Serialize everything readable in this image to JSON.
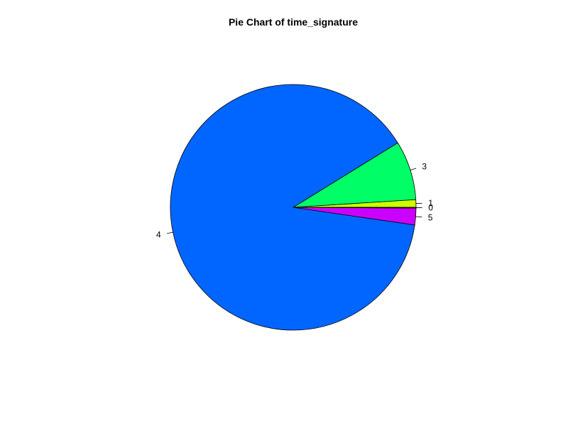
{
  "chart_data": {
    "type": "pie",
    "title": "Pie Chart of time_signature",
    "slices": [
      {
        "label": "1",
        "value": 1.0,
        "color": "#CCFF00"
      },
      {
        "label": "3",
        "value": 7.8,
        "color": "#00FF66"
      },
      {
        "label": "4",
        "value": 88.9,
        "color": "#0066FF"
      },
      {
        "label": "5",
        "value": 2.2,
        "color": "#CC00FF"
      },
      {
        "label": "0",
        "value": 0.1,
        "color": "#FF0000"
      }
    ],
    "unit": "%",
    "start_angle_deg": 0,
    "direction": "counterclockwise"
  }
}
